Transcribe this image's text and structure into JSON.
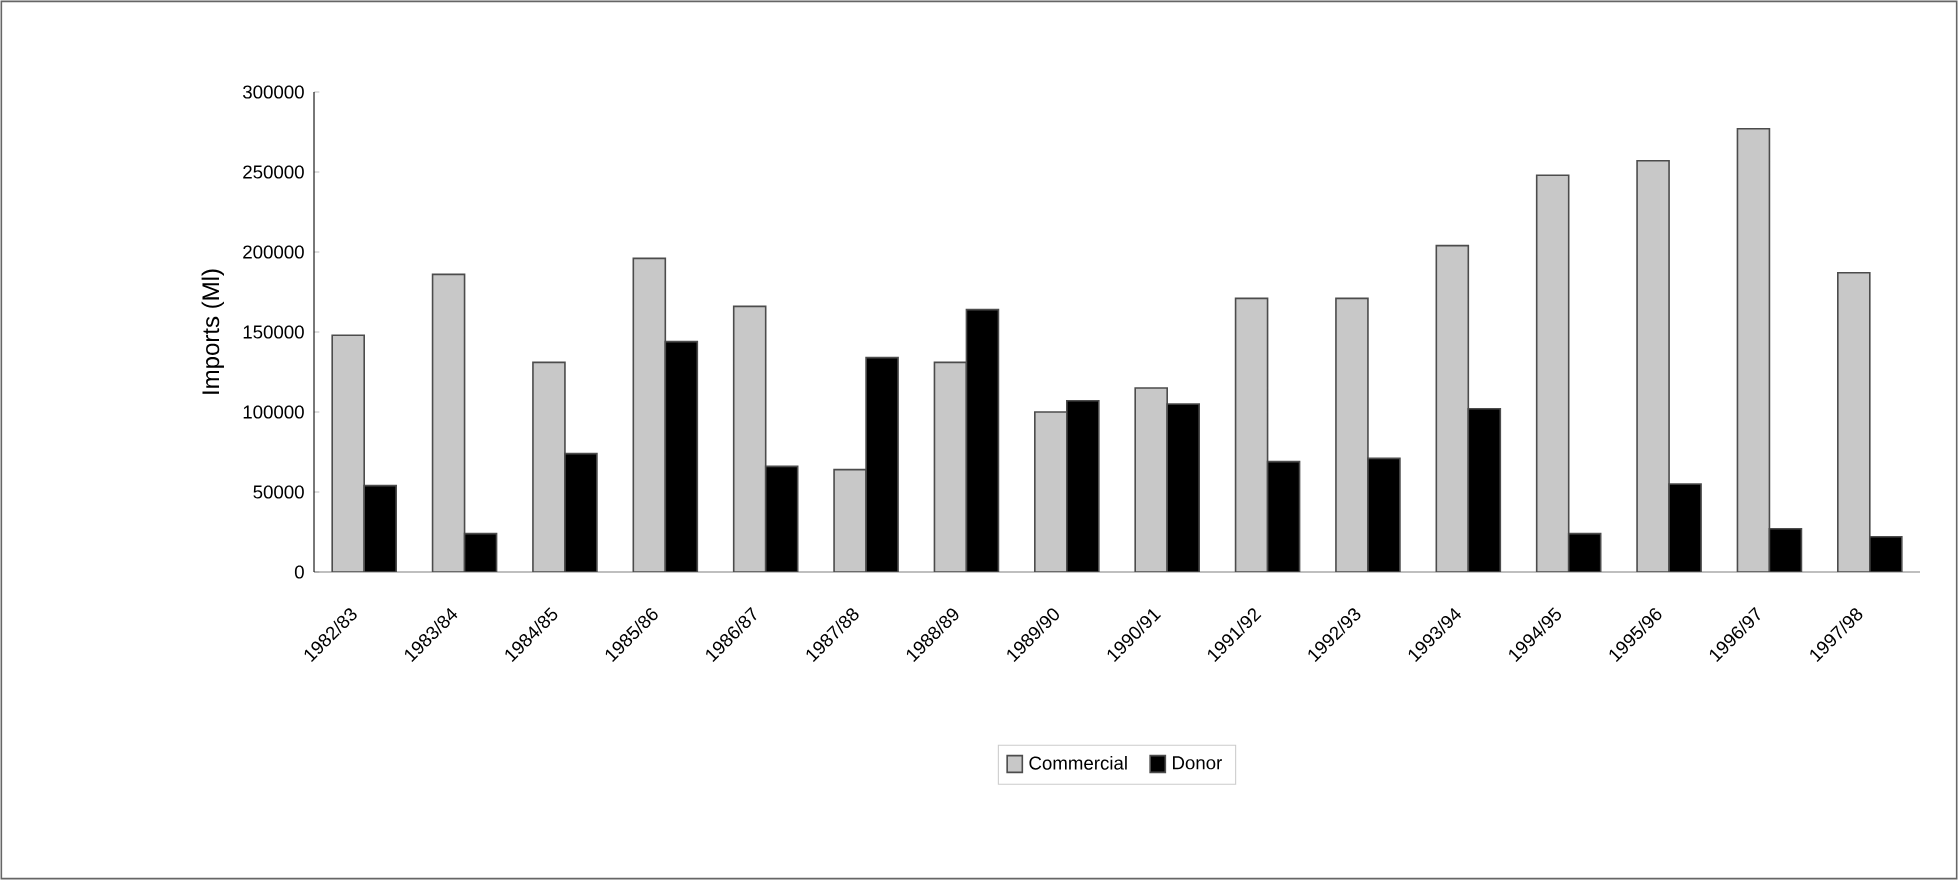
{
  "chart_data": {
    "type": "bar",
    "ylabel": "Imports (Ml)",
    "categories": [
      "1982/83",
      "1983/84",
      "1984/85",
      "1985/86",
      "1986/87",
      "1987/88",
      "1988/89",
      "1989/90",
      "1990/91",
      "1991/92",
      "1992/93",
      "1993/94",
      "1994/95",
      "1995/96",
      "1996/97",
      "1997/98"
    ],
    "series": [
      {
        "name": "Commercial",
        "color": "#c8c8c8",
        "values": [
          148000,
          186000,
          131000,
          196000,
          166000,
          64000,
          131000,
          100000,
          115000,
          171000,
          171000,
          204000,
          248000,
          257000,
          277000,
          187000
        ]
      },
      {
        "name": "Donor",
        "color": "#000000",
        "values": [
          54000,
          24000,
          74000,
          144000,
          66000,
          134000,
          164000,
          107000,
          105000,
          69000,
          71000,
          102000,
          24000,
          55000,
          27000,
          22000
        ]
      }
    ],
    "ylim": [
      0,
      300000
    ],
    "yticks": [
      0,
      50000,
      100000,
      150000,
      200000,
      250000,
      300000
    ],
    "legend": "bottom"
  }
}
